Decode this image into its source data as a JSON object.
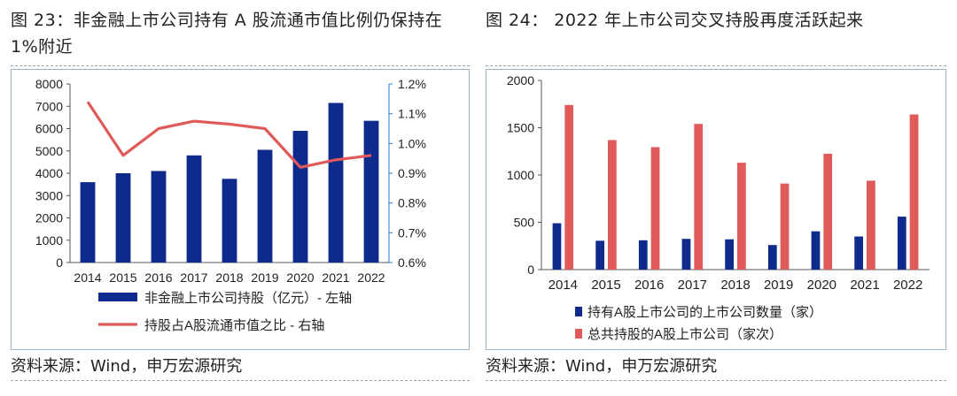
{
  "left": {
    "title": "图 23：非金融上市公司持有 A 股流通市值比例仍保持在 1%附近",
    "source": "资料来源：Wind，申万宏源研究",
    "chart_data": {
      "type": "bar+line",
      "categories": [
        "2014",
        "2015",
        "2016",
        "2017",
        "2018",
        "2019",
        "2020",
        "2021",
        "2022"
      ],
      "series": [
        {
          "name": "非金融上市公司持股（亿元）- 左轴",
          "kind": "bar",
          "axis": "left",
          "color": "#0e2a8c",
          "values": [
            3600,
            4000,
            4100,
            4800,
            3750,
            5050,
            5900,
            7150,
            6350
          ]
        },
        {
          "name": "持股占A股流通市值之比 - 右轴",
          "kind": "line",
          "axis": "right",
          "color": "#e05a5a",
          "values": [
            1.14,
            0.96,
            1.05,
            1.075,
            1.065,
            1.05,
            0.92,
            0.945,
            0.96
          ]
        }
      ],
      "ylim_left": [
        0,
        8000
      ],
      "yticks_left": [
        "0",
        "1000",
        "2000",
        "3000",
        "4000",
        "5000",
        "6000",
        "7000",
        "8000"
      ],
      "ylim_right": [
        0.6,
        1.2
      ],
      "yticks_right": [
        "0.6%",
        "0.7%",
        "0.8%",
        "0.9%",
        "1.0%",
        "1.1%",
        "1.2%"
      ],
      "grid": false,
      "legend_position": "bottom"
    }
  },
  "right": {
    "title": "图 24：  2022 年上市公司交叉持股再度活跃起来",
    "source": "资料来源：Wind，申万宏源研究",
    "chart_data": {
      "type": "bar",
      "categories": [
        "2014",
        "2015",
        "2016",
        "2017",
        "2018",
        "2019",
        "2020",
        "2021",
        "2022"
      ],
      "series": [
        {
          "name": "持有A股上市公司的上市公司数量（家）",
          "color": "#0e2a8c",
          "values": [
            490,
            305,
            310,
            325,
            320,
            260,
            405,
            350,
            560
          ]
        },
        {
          "name": "总共持股的A股上市公司（家次）",
          "color": "#e05a5a",
          "values": [
            1740,
            1370,
            1295,
            1540,
            1130,
            910,
            1225,
            940,
            1640
          ]
        }
      ],
      "ylim": [
        0,
        2000
      ],
      "yticks": [
        "0",
        "500",
        "1000",
        "1500",
        "2000"
      ],
      "grid": false,
      "legend_position": "bottom"
    }
  }
}
